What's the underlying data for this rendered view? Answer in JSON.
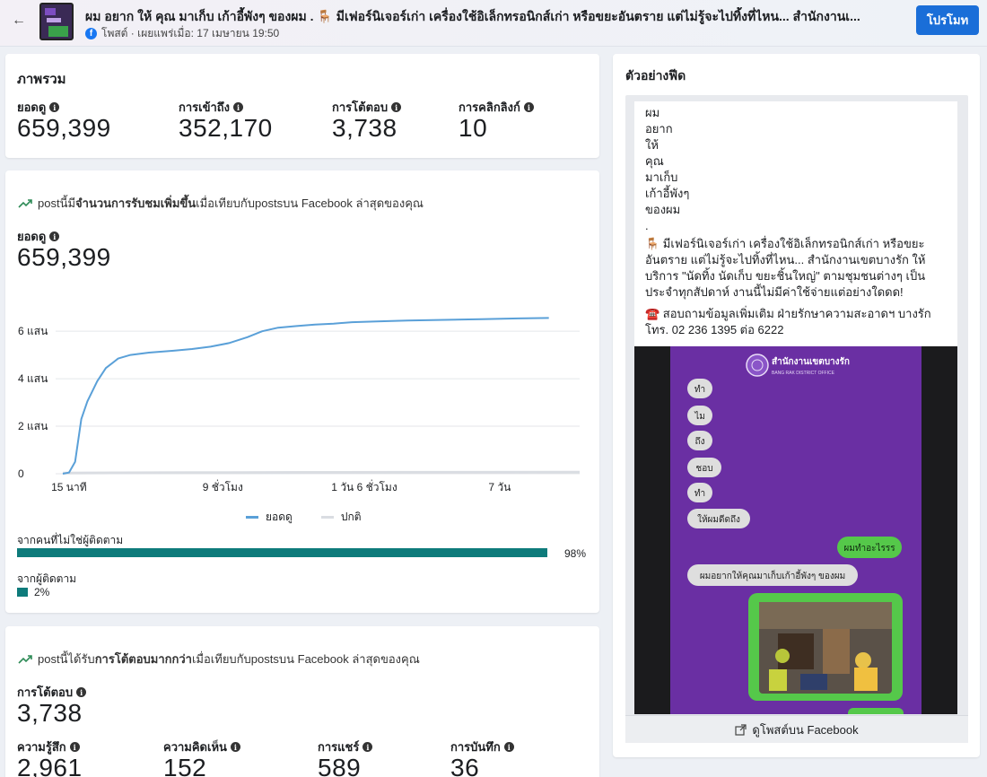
{
  "header": {
    "post_title": "ผม อยาก ให้ คุณ มาเก็บ เก้าอี้พังๆ ของผม . 🪑 มีเฟอร์นิเจอร์เก่า เครื่องใช้อิเล็กทรอนิกส์เก่า หรือขยะอันตราย แต่ไม่รู้จะไปทิ้งที่ไหน... สำนักงานเ...",
    "post_meta": "โพสต์ · เผยแพร่เมื่อ: 17 เมษายน 19:50",
    "promote_label": "โปรโมท"
  },
  "overview": {
    "title": "ภาพรวม",
    "metrics": [
      {
        "label": "ยอดดู",
        "value": "659,399"
      },
      {
        "label": "การเข้าถึง",
        "value": "352,170"
      },
      {
        "label": "การโต้ตอบ",
        "value": "3,738"
      },
      {
        "label": "การคลิกลิงก์",
        "value": "10"
      }
    ]
  },
  "views_card": {
    "insight_prefix": "postนี้มี",
    "insight_bold": "จำนวนการรับชมเพิ่มขึ้น",
    "insight_suffix": "เมื่อเทียบกับpostsบน Facebook ล่าสุดของคุณ",
    "metric_label": "ยอดดู",
    "metric_value": "659,399",
    "legend": [
      {
        "label": "ยอดดู",
        "color": "#5aa0d8"
      },
      {
        "label": "ปกติ",
        "color": "#dadde2"
      }
    ],
    "non_followers_label": "จากคนที่ไม่ใช่ผู้ติดตาม",
    "non_followers_pct": "98%",
    "non_followers_value": 98,
    "followers_label": "จากผู้ติดตาม",
    "followers_pct": "2%",
    "followers_value": 2
  },
  "chart_data": {
    "type": "line",
    "title": "",
    "xlabel": "",
    "ylabel": "",
    "x_ticks": [
      "15 นาที",
      "9 ชั่วโมง",
      "1 วัน 6 ชั่วโมง",
      "7 วัน"
    ],
    "y_ticks": [
      "0",
      "2 แสน",
      "4 แสน",
      "6 แสน"
    ],
    "ylim": [
      0,
      680000
    ],
    "grid": true,
    "legend_position": "bottom",
    "series": [
      {
        "name": "ยอดดู",
        "points": [
          [
            0,
            0
          ],
          [
            0.05,
            5000
          ],
          [
            0.1,
            50000
          ],
          [
            0.15,
            230000
          ],
          [
            0.2,
            305000
          ],
          [
            0.28,
            390000
          ],
          [
            0.35,
            445000
          ],
          [
            0.45,
            485000
          ],
          [
            0.55,
            500000
          ],
          [
            0.7,
            510000
          ],
          [
            0.9,
            518000
          ],
          [
            1.05,
            525000
          ],
          [
            1.2,
            535000
          ],
          [
            1.35,
            550000
          ],
          [
            1.5,
            575000
          ],
          [
            1.62,
            600000
          ],
          [
            1.75,
            615000
          ],
          [
            1.9,
            622000
          ],
          [
            2.05,
            628000
          ],
          [
            2.2,
            632000
          ],
          [
            2.35,
            638000
          ],
          [
            2.55,
            641000
          ],
          [
            2.8,
            645000
          ],
          [
            3.1,
            648000
          ],
          [
            3.4,
            651000
          ],
          [
            3.7,
            654000
          ],
          [
            3.95,
            656000
          ]
        ]
      },
      {
        "name": "ปกติ",
        "points": [
          [
            0,
            3000
          ],
          [
            1,
            4500
          ],
          [
            2,
            5500
          ],
          [
            3,
            6000
          ],
          [
            4.2,
            6500
          ]
        ]
      }
    ]
  },
  "engagement_card": {
    "insight_prefix": "postนี้ได้รับ",
    "insight_bold": "การโต้ตอบมากกว่า",
    "insight_suffix": "เมื่อเทียบกับpostsบน Facebook ล่าสุดของคุณ",
    "metric_label": "การโต้ตอบ",
    "metric_value": "3,738",
    "sub_metrics": [
      {
        "label": "ความรู้สึก",
        "value": "2,961"
      },
      {
        "label": "ความคิดเห็น",
        "value": "152"
      },
      {
        "label": "การแชร์",
        "value": "589"
      },
      {
        "label": "การบันทึก",
        "value": "36"
      }
    ]
  },
  "feed_preview": {
    "title": "ตัวอย่างฟีด",
    "lines": [
      "ผม",
      "อยาก",
      "ให้",
      "คุณ",
      "มาเก็บ",
      "เก้าอี้พังๆ",
      "ของผม",
      "."
    ],
    "paragraph1": "🪑 มีเฟอร์นิเจอร์เก่า เครื่องใช้อิเล็กทรอนิกส์เก่า หรือขยะอันตราย แต่ไม่รู้จะไปทิ้งที่ไหน... สำนักงานเขตบางรัก ให้บริการ \"นัดทิ้ง นัดเก็บ ขยะชิ้นใหญ่\" ตามชุมชนต่างๆ เป็นประจำทุกสัปดาห์ งานนี้ไม่มีค่าใช้จ่ายแต่อย่างใดดด!",
    "paragraph2": "☎️ สอบถามข้อมูลเพิ่มเติม ฝ่ายรักษาความสะอาดฯ บางรัก โทร. 02 236 1395 ต่อ 6222",
    "image": {
      "org_name": "สำนักงานเขตบางรัก",
      "org_sub": "BANG RAK DISTRICT OFFICE",
      "chat_left": [
        "ทำ",
        "ไม",
        "ถึง",
        "ชอบ",
        "ทำ",
        "ให้ผมดีดถึง"
      ],
      "chat_right": "ผมทำอะไรรร",
      "chat_left_long": "ผมอยากให้คุณมาเก็บเก้าอี้พังๆ ของผม"
    },
    "view_on_facebook": "ดูโพสต์บน Facebook"
  },
  "colors": {
    "accent": "#1a6ed8",
    "teal_bar": "#0e7b7b",
    "line_views": "#5aa0d8",
    "line_normal": "#dadde2",
    "purple_bg": "#6a2fa3",
    "chat_green": "#55c84a"
  },
  "icons": [
    "back-arrow-icon",
    "facebook-icon",
    "info-icon",
    "trend-up-icon",
    "external-link-icon"
  ]
}
